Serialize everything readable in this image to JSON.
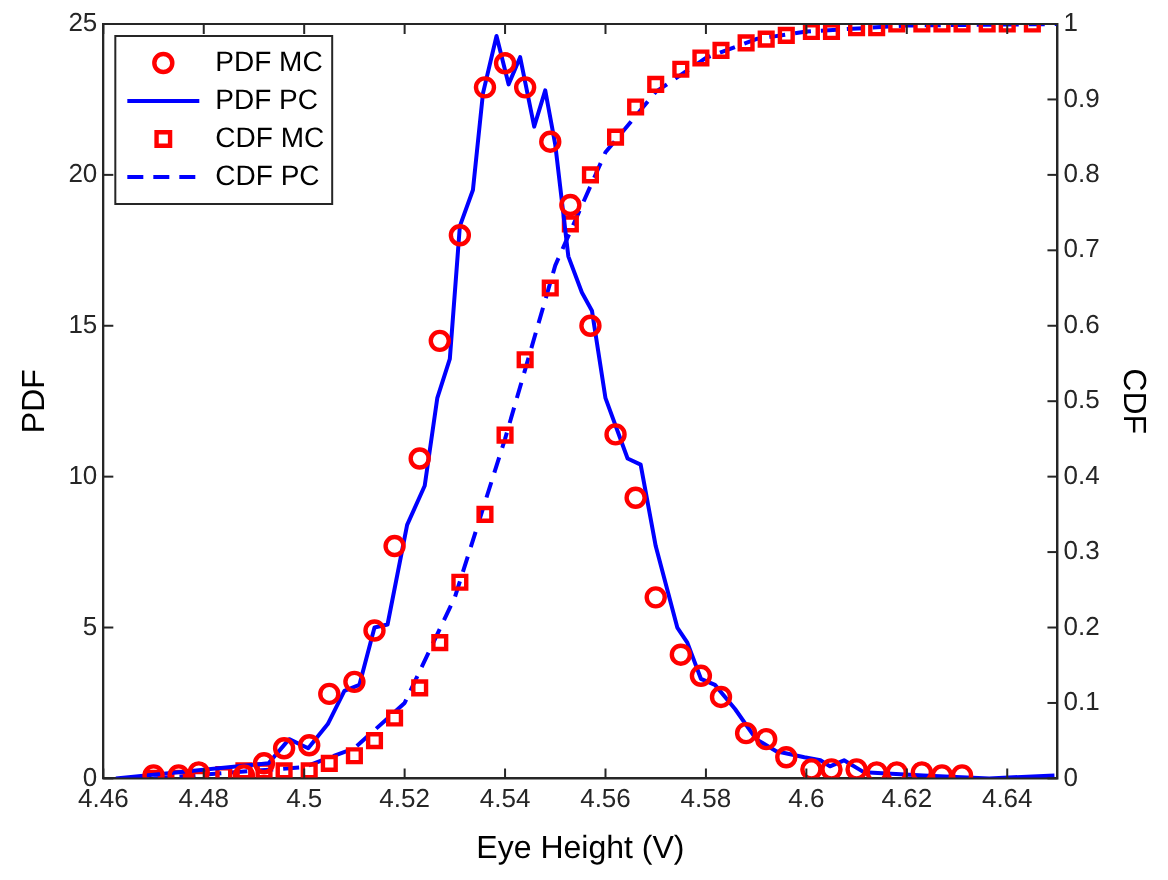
{
  "chart_data": {
    "type": "line",
    "xlabel": "Eye Height (V)",
    "ylabel": "PDF",
    "y2label": "CDF",
    "xlim": [
      4.46,
      4.65
    ],
    "xticks": [
      4.46,
      4.48,
      4.5,
      4.52,
      4.54,
      4.56,
      4.58,
      4.6,
      4.62,
      4.64
    ],
    "ylim": [
      0,
      25
    ],
    "yticks": [
      0,
      5,
      10,
      15,
      20,
      25
    ],
    "y2lim": [
      0,
      1
    ],
    "y2ticks": [
      0,
      0.1,
      0.2,
      0.3,
      0.4,
      0.5,
      0.6,
      0.7,
      0.8,
      0.9,
      1
    ],
    "grid": false,
    "legend": "top left",
    "series": [
      {
        "name": "PDF MC",
        "type": "scatter",
        "marker": "circle",
        "color": "#ff0000",
        "x": [
          4.47,
          4.475,
          4.479,
          4.488,
          4.492,
          4.496,
          4.501,
          4.505,
          4.51,
          4.514,
          4.518,
          4.523,
          4.527,
          4.531,
          4.536,
          4.54,
          4.544,
          4.549,
          4.553,
          4.557,
          4.562,
          4.566,
          4.57,
          4.575,
          4.579,
          4.583,
          4.588,
          4.592,
          4.596,
          4.601,
          4.605,
          4.61,
          4.614,
          4.618,
          4.623,
          4.627,
          4.631
        ],
        "values": [
          0.1,
          0.1,
          0.2,
          0.1,
          0.5,
          1.0,
          1.1,
          2.8,
          3.2,
          4.9,
          7.7,
          10.6,
          14.5,
          18.0,
          22.9,
          23.7,
          22.9,
          21.1,
          19.0,
          15.0,
          11.4,
          9.3,
          6.0,
          4.1,
          3.4,
          2.7,
          1.5,
          1.3,
          0.7,
          0.3,
          0.3,
          0.3,
          0.2,
          0.2,
          0.2,
          0.1,
          0.1
        ]
      },
      {
        "name": "PDF PC",
        "line_style": "solid",
        "color": "#0000ff",
        "x": [
          4.4625,
          4.4929,
          4.497,
          4.5008,
          4.5047,
          4.508,
          4.511,
          4.514,
          4.5166,
          4.5205,
          4.524,
          4.5265,
          4.529,
          4.531,
          4.5336,
          4.5356,
          4.5383,
          4.5407,
          4.543,
          4.5458,
          4.548,
          4.55,
          4.5526,
          4.5553,
          4.5573,
          4.56,
          4.5644,
          4.567,
          4.57,
          4.5743,
          4.5763,
          4.579,
          4.5818,
          4.5858,
          4.59,
          4.594,
          4.5996,
          4.6028,
          4.6047,
          4.6075,
          4.6115,
          4.6233,
          4.6364,
          4.6494
        ],
        "values": [
          0,
          0.5,
          1.3,
          1.0,
          1.8,
          2.9,
          3.1,
          5.0,
          5.1,
          8.4,
          9.7,
          12.6,
          13.9,
          18.3,
          19.5,
          22.7,
          24.6,
          23.0,
          23.9,
          21.6,
          22.8,
          21.0,
          17.3,
          16.1,
          15.5,
          12.6,
          10.6,
          10.4,
          7.7,
          5.0,
          4.5,
          3.3,
          3.1,
          2.3,
          1.3,
          0.9,
          0.7,
          0.6,
          0.4,
          0.6,
          0.2,
          0.1,
          0,
          0.1
        ]
      },
      {
        "name": "CDF MC",
        "type": "scatter",
        "marker": "square",
        "axis": "y2",
        "color": "#ff0000",
        "x": [
          4.47,
          4.475,
          4.479,
          4.484,
          4.488,
          4.492,
          4.496,
          4.501,
          4.505,
          4.51,
          4.514,
          4.518,
          4.523,
          4.527,
          4.531,
          4.536,
          4.54,
          4.544,
          4.549,
          4.553,
          4.557,
          4.562,
          4.566,
          4.57,
          4.575,
          4.579,
          4.583,
          4.588,
          4.592,
          4.596,
          4.601,
          4.605,
          4.61,
          4.614,
          4.618,
          4.623,
          4.627,
          4.631,
          4.636,
          4.64,
          4.645
        ],
        "values": [
          0,
          0,
          0,
          0.005,
          0.01,
          0.01,
          0.01,
          0.01,
          0.02,
          0.03,
          0.05,
          0.08,
          0.12,
          0.18,
          0.26,
          0.35,
          0.455,
          0.555,
          0.65,
          0.735,
          0.8,
          0.85,
          0.89,
          0.92,
          0.94,
          0.955,
          0.965,
          0.975,
          0.98,
          0.985,
          0.99,
          0.99,
          0.995,
          0.995,
          1,
          1,
          1,
          1,
          1,
          1,
          1
        ]
      },
      {
        "name": "CDF PC",
        "line_style": "dashed",
        "axis": "y2",
        "color": "#0000ff",
        "x": [
          4.47,
          4.49,
          4.5,
          4.51,
          4.52,
          4.53,
          4.54,
          4.55,
          4.56,
          4.57,
          4.58,
          4.59,
          4.6,
          4.62,
          4.65
        ],
        "values": [
          0,
          0.01,
          0.015,
          0.04,
          0.1,
          0.24,
          0.45,
          0.68,
          0.83,
          0.91,
          0.955,
          0.98,
          0.99,
          0.998,
          1
        ]
      }
    ]
  }
}
